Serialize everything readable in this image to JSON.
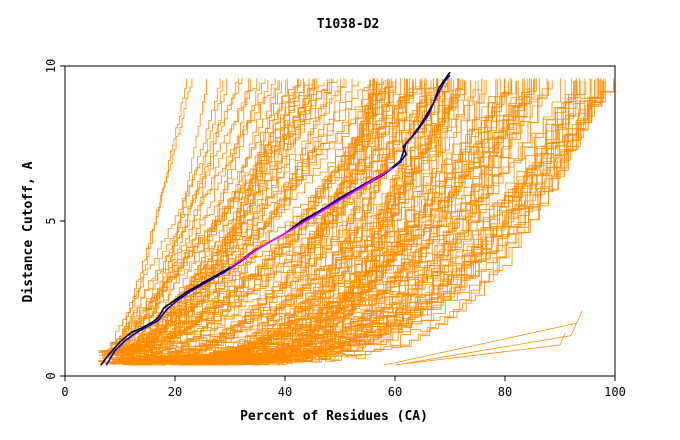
{
  "chart_data": {
    "type": "line",
    "title": "T1038-D2",
    "xlabel": "Percent of Residues (CA)",
    "ylabel": "Distance Cutoff, A",
    "xlim": [
      0,
      100
    ],
    "ylim": [
      0,
      10
    ],
    "xticks": [
      "0",
      "20",
      "40",
      "60",
      "80",
      "100"
    ],
    "yticks": [
      "0",
      "5",
      "10"
    ],
    "grid": false,
    "legend": "none",
    "colors": {
      "models": "#ff8c00",
      "highlight_black": "#000000",
      "highlight_blue": "#0000cc",
      "highlight_magenta": "#ff00ff",
      "axis": "#000000"
    },
    "series": [
      {
        "values": [
          [
            6.5,
            0.35
          ],
          [
            8,
            0.7
          ],
          [
            10,
            1.1
          ],
          [
            12,
            1.4
          ],
          [
            14,
            1.55
          ],
          [
            16,
            1.75
          ],
          [
            17,
            1.9
          ],
          [
            18,
            2.2
          ],
          [
            20,
            2.45
          ],
          [
            22,
            2.7
          ],
          [
            25,
            3.0
          ],
          [
            28,
            3.3
          ],
          [
            31,
            3.6
          ],
          [
            34,
            4.0
          ],
          [
            37,
            4.3
          ],
          [
            40,
            4.6
          ],
          [
            43,
            5.0
          ],
          [
            46,
            5.3
          ],
          [
            49,
            5.6
          ],
          [
            52,
            5.9
          ],
          [
            55,
            6.2
          ],
          [
            58,
            6.5
          ],
          [
            61,
            6.9
          ],
          [
            62,
            7.15
          ],
          [
            61.5,
            7.4
          ],
          [
            63,
            7.7
          ],
          [
            65,
            8.2
          ],
          [
            67,
            8.8
          ],
          [
            68,
            9.3
          ],
          [
            70,
            9.8
          ]
        ],
        "color": "#000000"
      },
      {
        "values": [
          [
            7.5,
            0.35
          ],
          [
            9,
            0.8
          ],
          [
            11,
            1.15
          ],
          [
            13,
            1.4
          ],
          [
            15,
            1.6
          ],
          [
            17,
            1.8
          ],
          [
            18.5,
            2.15
          ],
          [
            20.5,
            2.45
          ],
          [
            23,
            2.75
          ],
          [
            26,
            3.05
          ],
          [
            29,
            3.35
          ],
          [
            32,
            3.7
          ],
          [
            35,
            4.1
          ],
          [
            38,
            4.4
          ],
          [
            41,
            4.7
          ],
          [
            44,
            5.05
          ],
          [
            47,
            5.4
          ],
          [
            50,
            5.75
          ],
          [
            53,
            6.05
          ],
          [
            56,
            6.35
          ],
          [
            59,
            6.65
          ],
          [
            61,
            6.95
          ],
          [
            62,
            7.5
          ],
          [
            64,
            7.9
          ],
          [
            66,
            8.4
          ],
          [
            67.5,
            9.0
          ],
          [
            69,
            9.5
          ],
          [
            70,
            9.7
          ]
        ],
        "color": "#0000cc"
      },
      {
        "values": [
          [
            30,
            3.5
          ],
          [
            36,
            4.2
          ],
          [
            42,
            4.8
          ],
          [
            48,
            5.45
          ],
          [
            54,
            6.1
          ],
          [
            59.5,
            6.7
          ]
        ],
        "color": "#ff00ff"
      }
    ]
  }
}
